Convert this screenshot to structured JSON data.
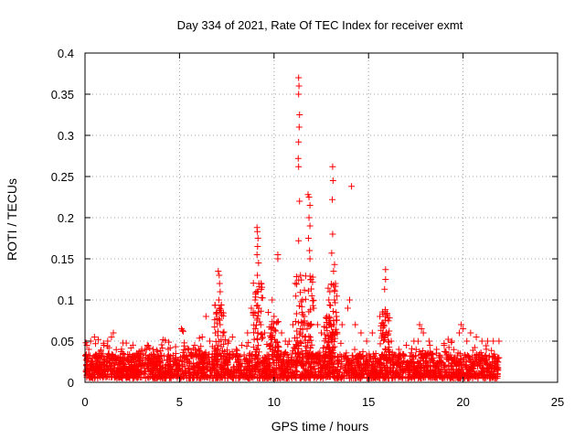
{
  "chart_data": {
    "type": "scatter",
    "title": "Day 334 of 2021, Rate Of TEC Index for receiver exmt",
    "xlabel": "GPS time / hours",
    "ylabel": "ROTI / TECUs",
    "xlim": [
      0,
      25
    ],
    "ylim": [
      0,
      0.4
    ],
    "x_ticks": [
      "0",
      "5",
      "10",
      "15",
      "20",
      "25"
    ],
    "x_tick_values": [
      0,
      5,
      10,
      15,
      20,
      25
    ],
    "y_ticks": [
      "0",
      "0.05",
      "0.1",
      "0.15",
      "0.2",
      "0.25",
      "0.3",
      "0.35",
      "0.4"
    ],
    "y_tick_values": [
      0,
      0.05,
      0.1,
      0.15,
      0.2,
      0.25,
      0.3,
      0.35,
      0.4
    ],
    "grid": true,
    "legend": "none",
    "marker": "plus",
    "color": "#ff0000",
    "series": [
      {
        "values_note_only_for_shape": null,
        "points": [
          [
            0.05,
            0.048
          ],
          [
            0.1,
            0.045
          ],
          [
            0.2,
            0.04
          ],
          [
            0.3,
            0.05
          ],
          [
            0.5,
            0.055
          ],
          [
            0.7,
            0.052
          ],
          [
            1.0,
            0.045
          ],
          [
            1.2,
            0.05
          ],
          [
            1.4,
            0.055
          ],
          [
            1.5,
            0.06
          ],
          [
            2.0,
            0.035
          ],
          [
            2.3,
            0.03
          ],
          [
            2.8,
            0.035
          ],
          [
            3.0,
            0.04
          ],
          [
            3.3,
            0.045
          ],
          [
            3.6,
            0.04
          ],
          [
            4.0,
            0.038
          ],
          [
            4.4,
            0.04
          ],
          [
            4.8,
            0.035
          ],
          [
            5.1,
            0.065
          ],
          [
            5.15,
            0.063
          ],
          [
            5.2,
            0.062
          ],
          [
            5.5,
            0.04
          ],
          [
            5.8,
            0.045
          ],
          [
            6.2,
            0.055
          ],
          [
            6.4,
            0.08
          ],
          [
            6.6,
            0.05
          ],
          [
            6.9,
            0.06
          ],
          [
            7.05,
            0.135
          ],
          [
            7.1,
            0.13
          ],
          [
            7.12,
            0.12
          ],
          [
            7.15,
            0.11
          ],
          [
            7.08,
            0.1
          ],
          [
            7.1,
            0.09
          ],
          [
            7.2,
            0.085
          ],
          [
            7.3,
            0.06
          ],
          [
            7.6,
            0.05
          ],
          [
            7.8,
            0.055
          ],
          [
            8.0,
            0.04
          ],
          [
            8.3,
            0.045
          ],
          [
            8.6,
            0.06
          ],
          [
            8.8,
            0.09
          ],
          [
            8.9,
            0.085
          ],
          [
            9.0,
            0.1
          ],
          [
            9.1,
            0.188
          ],
          [
            9.12,
            0.183
          ],
          [
            9.15,
            0.175
          ],
          [
            9.13,
            0.165
          ],
          [
            9.1,
            0.155
          ],
          [
            9.18,
            0.145
          ],
          [
            9.12,
            0.13
          ],
          [
            9.2,
            0.12
          ],
          [
            9.15,
            0.11
          ],
          [
            9.2,
            0.09
          ],
          [
            9.3,
            0.07
          ],
          [
            9.5,
            0.06
          ],
          [
            9.7,
            0.085
          ],
          [
            9.9,
            0.1
          ],
          [
            10.0,
            0.08
          ],
          [
            10.2,
            0.155
          ],
          [
            10.2,
            0.15
          ],
          [
            10.4,
            0.06
          ],
          [
            10.6,
            0.05
          ],
          [
            10.8,
            0.05
          ],
          [
            11.0,
            0.07
          ],
          [
            11.3,
            0.37
          ],
          [
            11.32,
            0.36
          ],
          [
            11.3,
            0.35
          ],
          [
            11.35,
            0.325
          ],
          [
            11.33,
            0.31
          ],
          [
            11.3,
            0.292
          ],
          [
            11.28,
            0.272
          ],
          [
            11.3,
            0.262
          ],
          [
            11.35,
            0.22
          ],
          [
            11.3,
            0.172
          ],
          [
            11.4,
            0.13
          ],
          [
            11.5,
            0.1
          ],
          [
            11.6,
            0.08
          ],
          [
            11.4,
            0.06
          ],
          [
            11.8,
            0.228
          ],
          [
            11.85,
            0.225
          ],
          [
            11.9,
            0.215
          ],
          [
            11.85,
            0.2
          ],
          [
            11.9,
            0.19
          ],
          [
            11.82,
            0.175
          ],
          [
            11.88,
            0.16
          ],
          [
            11.9,
            0.15
          ],
          [
            11.95,
            0.125
          ],
          [
            12.0,
            0.105
          ],
          [
            12.1,
            0.09
          ],
          [
            12.3,
            0.07
          ],
          [
            12.5,
            0.06
          ],
          [
            12.8,
            0.08
          ],
          [
            12.9,
            0.1
          ],
          [
            13.1,
            0.262
          ],
          [
            13.12,
            0.245
          ],
          [
            13.08,
            0.222
          ],
          [
            13.1,
            0.18
          ],
          [
            13.05,
            0.157
          ],
          [
            13.2,
            0.143
          ],
          [
            13.15,
            0.135
          ],
          [
            13.25,
            0.12
          ],
          [
            13.2,
            0.1
          ],
          [
            13.3,
            0.08
          ],
          [
            13.6,
            0.07
          ],
          [
            13.9,
            0.09
          ],
          [
            14.0,
            0.1
          ],
          [
            14.1,
            0.238
          ],
          [
            14.3,
            0.07
          ],
          [
            14.6,
            0.06
          ],
          [
            14.9,
            0.05
          ],
          [
            15.2,
            0.06
          ],
          [
            15.6,
            0.08
          ],
          [
            15.9,
            0.137
          ],
          [
            15.9,
            0.125
          ],
          [
            15.85,
            0.113
          ],
          [
            15.9,
            0.08
          ],
          [
            16.2,
            0.05
          ],
          [
            16.6,
            0.04
          ],
          [
            17.0,
            0.045
          ],
          [
            17.4,
            0.05
          ],
          [
            17.7,
            0.07
          ],
          [
            17.8,
            0.065
          ],
          [
            17.9,
            0.06
          ],
          [
            18.2,
            0.05
          ],
          [
            18.6,
            0.04
          ],
          [
            19.0,
            0.045
          ],
          [
            19.4,
            0.05
          ],
          [
            19.8,
            0.06
          ],
          [
            19.9,
            0.07
          ],
          [
            20.0,
            0.065
          ],
          [
            20.2,
            0.05
          ],
          [
            20.4,
            0.06
          ],
          [
            20.7,
            0.055
          ],
          [
            21.0,
            0.05
          ],
          [
            21.3,
            0.05
          ],
          [
            21.6,
            0.05
          ],
          [
            21.9,
            0.05
          ]
        ]
      }
    ],
    "dense_band": {
      "x_range": [
        0,
        21.9
      ],
      "baseline_y": [
        0.005,
        0.035
      ],
      "note": "dense cluster of markers near the bottom across the whole time range"
    }
  }
}
